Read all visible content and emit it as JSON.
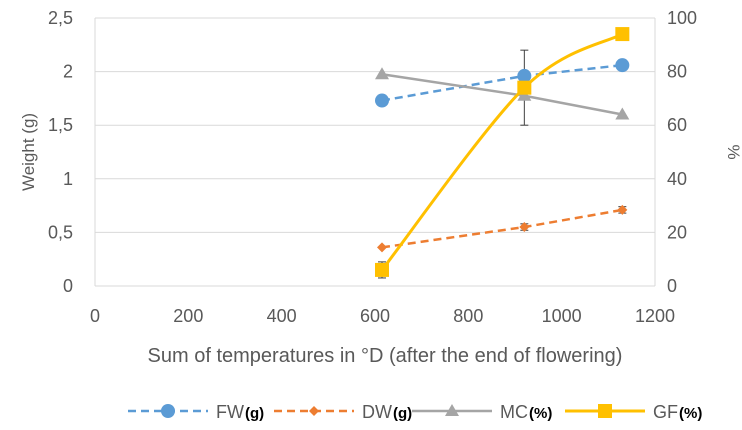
{
  "chart_data": {
    "type": "line",
    "xlabel": "Sum of temperatures in °D (after the end of flowering)",
    "ylabel": "Weight (g)",
    "y2label": "%",
    "xlim": [
      0,
      1200
    ],
    "xticks": [
      "0",
      "200",
      "400",
      "600",
      "800",
      "1000",
      "1200"
    ],
    "ylim": [
      0,
      2.5
    ],
    "yticks": [
      "0",
      "0,5",
      "1",
      "1,5",
      "2",
      "2,5"
    ],
    "y2lim": [
      0,
      100
    ],
    "y2ticks": [
      "0",
      "20",
      "40",
      "60",
      "80",
      "100"
    ],
    "grid": "horizontal",
    "legend_position": "bottom",
    "series": [
      {
        "name": "FW",
        "unit": "(g)",
        "axis": "left",
        "color": "#5B9BD5",
        "line_style": "dashed",
        "marker": "circle",
        "x": [
          615,
          920,
          1130
        ],
        "y": [
          1.73,
          1.96,
          2.06
        ],
        "err": [
          0,
          0,
          0
        ]
      },
      {
        "name": "DW",
        "unit": "(g)",
        "axis": "left",
        "color": "#ED7D31",
        "line_style": "dashed",
        "marker": "diamond",
        "x": [
          615,
          920,
          1130
        ],
        "y": [
          0.36,
          0.55,
          0.71
        ],
        "err": [
          0,
          0.03,
          0.03
        ]
      },
      {
        "name": "MC",
        "unit": "(%)",
        "axis": "right",
        "color": "#A5A5A5",
        "line_style": "solid",
        "marker": "triangle",
        "x": [
          615,
          920,
          1130
        ],
        "y": [
          79,
          71,
          64
        ],
        "err": [
          0,
          0,
          0
        ]
      },
      {
        "name": "GF",
        "unit": "(%)",
        "axis": "right",
        "color": "#FFC000",
        "line_style": "smooth",
        "marker": "square",
        "x": [
          615,
          920,
          1130
        ],
        "y": [
          6,
          74,
          94
        ],
        "err": [
          3,
          14,
          0
        ]
      }
    ]
  }
}
